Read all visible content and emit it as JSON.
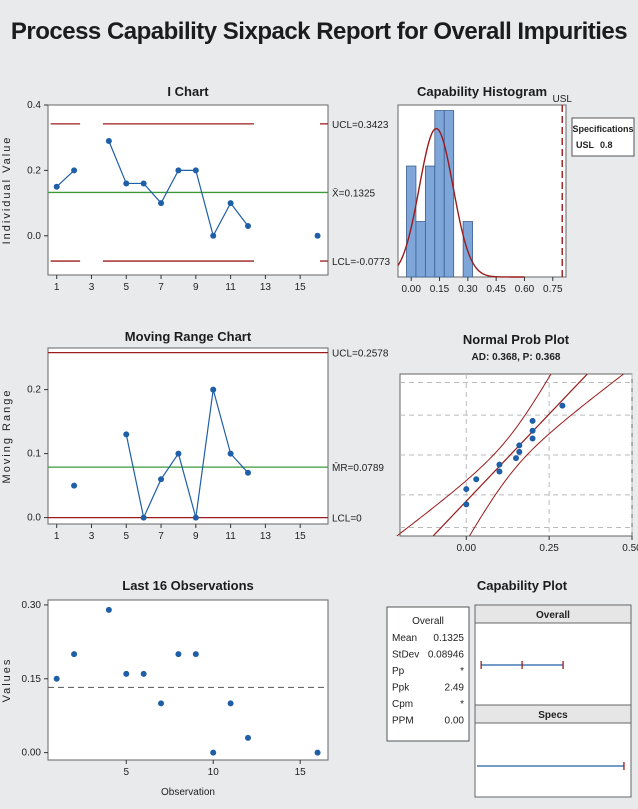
{
  "title": "Process Capability Sixpack Report for Overall Impurities",
  "chart_data": [
    {
      "id": "ichart",
      "type": "line",
      "title": "I Chart",
      "xlabel": "",
      "ylabel": "Individual Value",
      "x": [
        1,
        2,
        4,
        5,
        6,
        7,
        8,
        9,
        10,
        11,
        12,
        16
      ],
      "values": [
        0.15,
        0.2,
        0.29,
        0.16,
        0.16,
        0.1,
        0.2,
        0.2,
        0.0,
        0.1,
        0.03,
        0.0
      ],
      "xticks": [
        1,
        3,
        5,
        7,
        9,
        11,
        13,
        15
      ],
      "yticks": [
        0.0,
        0.2,
        0.4
      ],
      "xlim": [
        0.5,
        16.6
      ],
      "ylim": [
        -0.12,
        0.4
      ],
      "limits": {
        "ucl": 0.3423,
        "center": 0.1325,
        "lcl": -0.0773
      },
      "limit_labels": {
        "ucl": "UCL=0.3423",
        "center": "X̄=0.1325",
        "lcl": "LCL=-0.0773"
      }
    },
    {
      "id": "mrchart",
      "type": "line",
      "title": "Moving Range Chart",
      "xlabel": "",
      "ylabel": "Moving Range",
      "x": [
        2,
        5,
        6,
        7,
        8,
        9,
        10,
        11,
        12
      ],
      "values": [
        0.05,
        0.13,
        0.0,
        0.06,
        0.1,
        0.0,
        0.2,
        0.1,
        0.07
      ],
      "xticks": [
        1,
        3,
        5,
        7,
        9,
        11,
        13,
        15
      ],
      "yticks": [
        0.0,
        0.1,
        0.2
      ],
      "xlim": [
        0.5,
        16.6
      ],
      "ylim": [
        -0.01,
        0.265
      ],
      "limits": {
        "ucl": 0.2578,
        "center": 0.0789,
        "lcl": 0
      },
      "limit_labels": {
        "ucl": "UCL=0.2578",
        "center": "M̄R=0.0789",
        "lcl": "LCL=0"
      }
    },
    {
      "id": "last16",
      "type": "scatter",
      "title": "Last 16 Observations",
      "xlabel": "Observation",
      "ylabel": "Values",
      "x": [
        1,
        2,
        4,
        5,
        6,
        7,
        8,
        9,
        10,
        11,
        12,
        16
      ],
      "values": [
        0.15,
        0.2,
        0.29,
        0.16,
        0.16,
        0.1,
        0.2,
        0.2,
        0.0,
        0.1,
        0.03,
        0.0
      ],
      "xticks": [
        5,
        10,
        15
      ],
      "yticks": [
        0.0,
        0.15,
        0.3
      ],
      "ytick_labels": [
        "0.00",
        "0.15",
        "0.30"
      ],
      "xlim": [
        0.5,
        16.6
      ],
      "ylim": [
        -0.015,
        0.31
      ],
      "reference": 0.1325
    },
    {
      "id": "histogram",
      "type": "bar",
      "title": "Capability Histogram",
      "bins": [
        [
          -0.025,
          0.025
        ],
        [
          0.025,
          0.075
        ],
        [
          0.075,
          0.125
        ],
        [
          0.125,
          0.175
        ],
        [
          0.175,
          0.225
        ],
        [
          0.225,
          0.275
        ],
        [
          0.275,
          0.325
        ]
      ],
      "counts": [
        2,
        1,
        2,
        3,
        3,
        0,
        1
      ],
      "xticks": [
        0.0,
        0.15,
        0.3,
        0.45,
        0.6,
        0.75
      ],
      "xtick_labels": [
        "0.00",
        "0.15",
        "0.30",
        "0.45",
        "0.60",
        "0.75"
      ],
      "xlim": [
        -0.07,
        0.82
      ],
      "ylim": [
        0,
        3.1
      ],
      "usl": 0.8,
      "usl_label": "USL",
      "fit": {
        "mean": 0.1325,
        "sd": 0.08946
      }
    },
    {
      "id": "probplot",
      "type": "scatter",
      "title": "Normal Prob Plot",
      "subtitle": "AD: 0.368, P: 0.368",
      "x": [
        0.0,
        0.0,
        0.03,
        0.1,
        0.1,
        0.15,
        0.16,
        0.16,
        0.2,
        0.2,
        0.2,
        0.29
      ],
      "xticks": [
        0.0,
        0.25,
        0.5
      ],
      "xtick_labels": [
        "0.00",
        "0.25",
        "0.50"
      ],
      "xlim": [
        -0.2,
        0.5
      ],
      "mean": 0.1325,
      "sd": 0.08946
    },
    {
      "id": "capplot",
      "type": "line",
      "title": "Capability Plot",
      "overall_label": "Overall",
      "specs_label": "Specs",
      "interval": [
        -0.136,
        0.1325,
        0.401
      ],
      "usl": 0.8,
      "xlim": [
        -0.15,
        0.82
      ]
    }
  ],
  "specifications": {
    "title": "Specifications",
    "rows": [
      {
        "label": "USL",
        "value": "0.8"
      }
    ]
  },
  "overall_stats": {
    "title": "Overall",
    "rows": [
      {
        "label": "Mean",
        "value": "0.1325"
      },
      {
        "label": "StDev",
        "value": "0.08946"
      },
      {
        "label": "Pp",
        "value": "*"
      },
      {
        "label": "Ppk",
        "value": "2.49"
      },
      {
        "label": "Cpm",
        "value": "*"
      },
      {
        "label": "PPM",
        "value": "0.00"
      }
    ]
  },
  "colors": {
    "background": "#e8eaec",
    "plot_bg": "#ffffff",
    "series": "#1f5fa8",
    "control_limit": "#9b1c1c",
    "center_line": "#3a9a3a",
    "hist_bar": "#7ea6d8",
    "grid": "#bbbbbb"
  }
}
